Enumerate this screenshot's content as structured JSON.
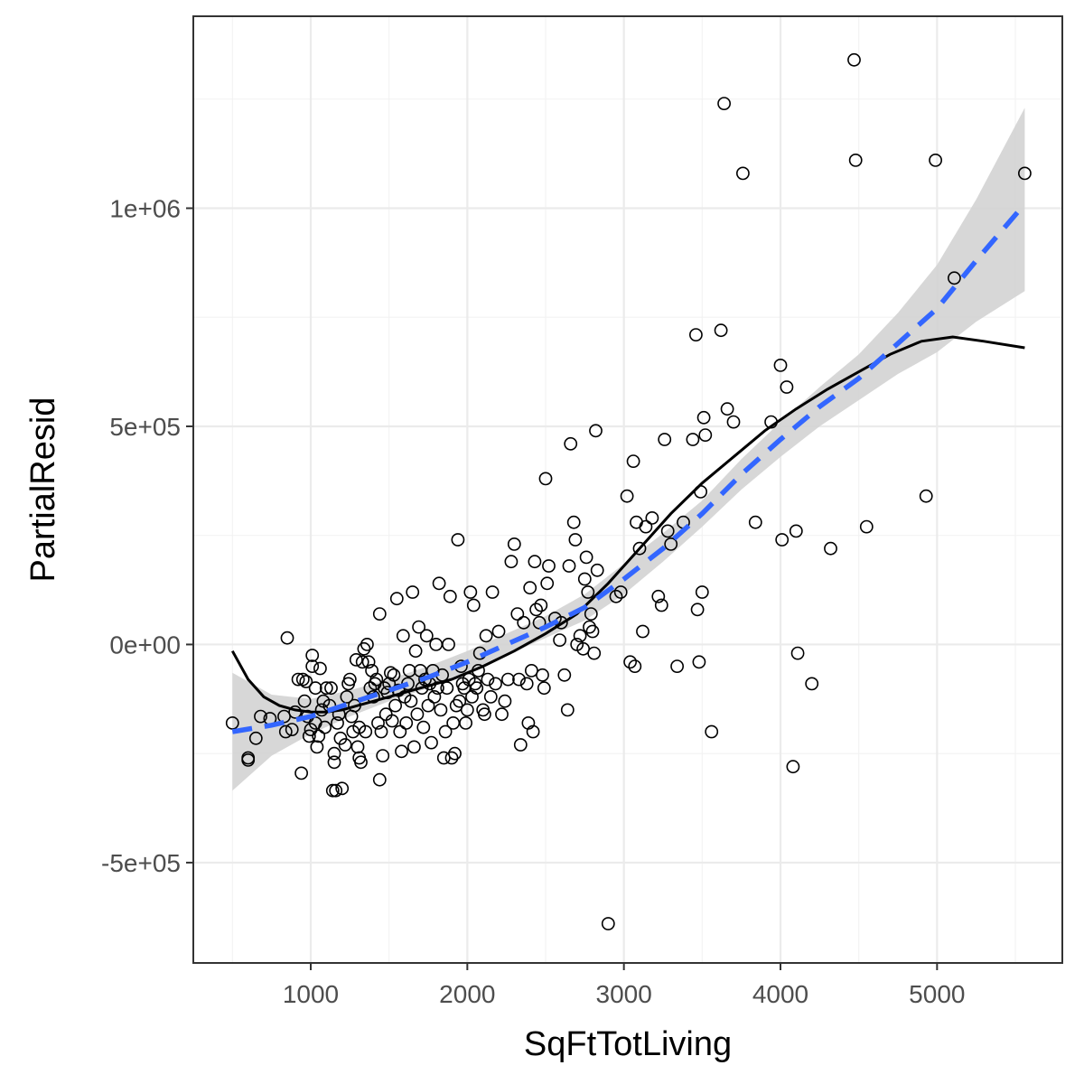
{
  "chart_data": {
    "type": "scatter",
    "xlabel": "SqFtTotLiving",
    "ylabel": "PartialResid",
    "xlim": [
      250,
      5800
    ],
    "ylim": [
      -730000,
      1440000
    ],
    "x_ticks": [
      1000,
      2000,
      3000,
      4000,
      5000
    ],
    "x_tick_labels": [
      "1000",
      "2000",
      "3000",
      "4000",
      "5000"
    ],
    "y_ticks": [
      -500000,
      0,
      500000,
      1000000
    ],
    "y_tick_labels": [
      "-5e+05",
      "0e+00",
      "5e+05",
      "1e+06"
    ],
    "x_minor_ticks": [
      500,
      1500,
      2500,
      3500,
      4500,
      5500
    ],
    "y_minor_ticks": [
      -250000,
      250000,
      750000,
      1250000
    ],
    "grid": true,
    "colors": {
      "smooth_line": "#3366ff",
      "ribbon": "#d3d3d3",
      "loess_line": "#000000",
      "points": "#000000"
    },
    "series": [
      {
        "kind": "points",
        "points": [
          [
            500,
            -180000
          ],
          [
            600,
            -260000
          ],
          [
            600,
            -265000
          ],
          [
            650,
            -215000
          ],
          [
            680,
            -165000
          ],
          [
            740,
            -170000
          ],
          [
            830,
            -165000
          ],
          [
            840,
            -200000
          ],
          [
            850,
            15000
          ],
          [
            880,
            -195000
          ],
          [
            900,
            -155000
          ],
          [
            920,
            -80000
          ],
          [
            940,
            -295000
          ],
          [
            950,
            -80000
          ],
          [
            960,
            -130000
          ],
          [
            970,
            -85000
          ],
          [
            980,
            -165000
          ],
          [
            990,
            -210000
          ],
          [
            1000,
            -195000
          ],
          [
            1010,
            -25000
          ],
          [
            1010,
            -50000
          ],
          [
            1030,
            -100000
          ],
          [
            1030,
            -180000
          ],
          [
            1040,
            -235000
          ],
          [
            1050,
            -210000
          ],
          [
            1060,
            -55000
          ],
          [
            1070,
            -150000
          ],
          [
            1080,
            -130000
          ],
          [
            1090,
            -190000
          ],
          [
            1100,
            -100000
          ],
          [
            1120,
            -140000
          ],
          [
            1130,
            -100000
          ],
          [
            1140,
            -335000
          ],
          [
            1150,
            -270000
          ],
          [
            1150,
            -250000
          ],
          [
            1160,
            -335000
          ],
          [
            1170,
            -180000
          ],
          [
            1180,
            -160000
          ],
          [
            1190,
            -215000
          ],
          [
            1200,
            -330000
          ],
          [
            1220,
            -230000
          ],
          [
            1230,
            -120000
          ],
          [
            1240,
            -90000
          ],
          [
            1250,
            -80000
          ],
          [
            1260,
            -165000
          ],
          [
            1270,
            -200000
          ],
          [
            1280,
            -140000
          ],
          [
            1290,
            -35000
          ],
          [
            1300,
            -235000
          ],
          [
            1310,
            -260000
          ],
          [
            1310,
            -190000
          ],
          [
            1320,
            -270000
          ],
          [
            1330,
            -40000
          ],
          [
            1340,
            -10000
          ],
          [
            1350,
            -200000
          ],
          [
            1360,
            0
          ],
          [
            1370,
            -40000
          ],
          [
            1380,
            -100000
          ],
          [
            1390,
            -60000
          ],
          [
            1400,
            -120000
          ],
          [
            1410,
            -90000
          ],
          [
            1420,
            -80000
          ],
          [
            1430,
            -180000
          ],
          [
            1440,
            -310000
          ],
          [
            1440,
            70000
          ],
          [
            1450,
            -200000
          ],
          [
            1460,
            -255000
          ],
          [
            1470,
            -100000
          ],
          [
            1480,
            -160000
          ],
          [
            1490,
            -110000
          ],
          [
            1500,
            -90000
          ],
          [
            1510,
            -65000
          ],
          [
            1520,
            -175000
          ],
          [
            1530,
            -70000
          ],
          [
            1540,
            -140000
          ],
          [
            1550,
            105000
          ],
          [
            1560,
            -105000
          ],
          [
            1570,
            -200000
          ],
          [
            1580,
            -245000
          ],
          [
            1590,
            20000
          ],
          [
            1600,
            -120000
          ],
          [
            1610,
            -180000
          ],
          [
            1620,
            -90000
          ],
          [
            1630,
            -60000
          ],
          [
            1640,
            -130000
          ],
          [
            1650,
            120000
          ],
          [
            1660,
            -235000
          ],
          [
            1670,
            -15000
          ],
          [
            1680,
            -160000
          ],
          [
            1690,
            40000
          ],
          [
            1700,
            -60000
          ],
          [
            1710,
            -100000
          ],
          [
            1720,
            -190000
          ],
          [
            1730,
            -80000
          ],
          [
            1740,
            20000
          ],
          [
            1750,
            -140000
          ],
          [
            1760,
            -90000
          ],
          [
            1770,
            -225000
          ],
          [
            1780,
            -60000
          ],
          [
            1790,
            -120000
          ],
          [
            1800,
            0
          ],
          [
            1810,
            -100000
          ],
          [
            1820,
            140000
          ],
          [
            1830,
            -150000
          ],
          [
            1840,
            -70000
          ],
          [
            1850,
            -260000
          ],
          [
            1860,
            -200000
          ],
          [
            1870,
            -100000
          ],
          [
            1880,
            0
          ],
          [
            1890,
            110000
          ],
          [
            1900,
            -260000
          ],
          [
            1910,
            -180000
          ],
          [
            1920,
            -250000
          ],
          [
            1930,
            -140000
          ],
          [
            1940,
            240000
          ],
          [
            1950,
            -130000
          ],
          [
            1960,
            -50000
          ],
          [
            1970,
            -90000
          ],
          [
            1980,
            -100000
          ],
          [
            1990,
            -180000
          ],
          [
            2000,
            -150000
          ],
          [
            2010,
            -80000
          ],
          [
            2020,
            120000
          ],
          [
            2030,
            -120000
          ],
          [
            2040,
            90000
          ],
          [
            2050,
            -90000
          ],
          [
            2060,
            -100000
          ],
          [
            2070,
            -60000
          ],
          [
            2080,
            -20000
          ],
          [
            2100,
            -150000
          ],
          [
            2110,
            -160000
          ],
          [
            2120,
            20000
          ],
          [
            2130,
            -80000
          ],
          [
            2150,
            -120000
          ],
          [
            2160,
            120000
          ],
          [
            2180,
            -90000
          ],
          [
            2200,
            30000
          ],
          [
            2220,
            -160000
          ],
          [
            2240,
            -130000
          ],
          [
            2260,
            -80000
          ],
          [
            2280,
            190000
          ],
          [
            2300,
            230000
          ],
          [
            2320,
            70000
          ],
          [
            2330,
            -80000
          ],
          [
            2340,
            -230000
          ],
          [
            2360,
            50000
          ],
          [
            2380,
            -90000
          ],
          [
            2390,
            -180000
          ],
          [
            2400,
            130000
          ],
          [
            2410,
            -60000
          ],
          [
            2420,
            -200000
          ],
          [
            2430,
            190000
          ],
          [
            2440,
            80000
          ],
          [
            2460,
            50000
          ],
          [
            2470,
            90000
          ],
          [
            2480,
            -70000
          ],
          [
            2490,
            -100000
          ],
          [
            2500,
            380000
          ],
          [
            2510,
            140000
          ],
          [
            2520,
            180000
          ],
          [
            2560,
            60000
          ],
          [
            2590,
            10000
          ],
          [
            2600,
            50000
          ],
          [
            2620,
            -70000
          ],
          [
            2640,
            -150000
          ],
          [
            2650,
            180000
          ],
          [
            2660,
            460000
          ],
          [
            2680,
            280000
          ],
          [
            2690,
            240000
          ],
          [
            2700,
            0
          ],
          [
            2720,
            20000
          ],
          [
            2740,
            -10000
          ],
          [
            2750,
            150000
          ],
          [
            2760,
            200000
          ],
          [
            2770,
            120000
          ],
          [
            2780,
            40000
          ],
          [
            2790,
            70000
          ],
          [
            2800,
            30000
          ],
          [
            2810,
            -20000
          ],
          [
            2820,
            490000
          ],
          [
            2830,
            170000
          ],
          [
            2900,
            -640000
          ],
          [
            2950,
            110000
          ],
          [
            2980,
            120000
          ],
          [
            3020,
            340000
          ],
          [
            3040,
            -40000
          ],
          [
            3060,
            420000
          ],
          [
            3070,
            -50000
          ],
          [
            3080,
            280000
          ],
          [
            3100,
            220000
          ],
          [
            3120,
            30000
          ],
          [
            3140,
            270000
          ],
          [
            3180,
            290000
          ],
          [
            3220,
            110000
          ],
          [
            3240,
            90000
          ],
          [
            3260,
            470000
          ],
          [
            3280,
            260000
          ],
          [
            3300,
            230000
          ],
          [
            3340,
            -50000
          ],
          [
            3380,
            280000
          ],
          [
            3440,
            470000
          ],
          [
            3460,
            710000
          ],
          [
            3470,
            80000
          ],
          [
            3480,
            -40000
          ],
          [
            3490,
            350000
          ],
          [
            3500,
            120000
          ],
          [
            3510,
            520000
          ],
          [
            3520,
            480000
          ],
          [
            3560,
            -200000
          ],
          [
            3620,
            720000
          ],
          [
            3640,
            1240000
          ],
          [
            3660,
            540000
          ],
          [
            3700,
            510000
          ],
          [
            3760,
            1080000
          ],
          [
            3840,
            280000
          ],
          [
            3940,
            510000
          ],
          [
            4000,
            640000
          ],
          [
            4010,
            240000
          ],
          [
            4040,
            590000
          ],
          [
            4080,
            -280000
          ],
          [
            4100,
            260000
          ],
          [
            4110,
            -20000
          ],
          [
            4200,
            -90000
          ],
          [
            4320,
            220000
          ],
          [
            4470,
            1340000
          ],
          [
            4480,
            1110000
          ],
          [
            4550,
            270000
          ],
          [
            4930,
            340000
          ],
          [
            4990,
            1110000
          ],
          [
            5110,
            840000
          ],
          [
            5560,
            1080000
          ]
        ]
      },
      {
        "kind": "smooth",
        "line_style": "dashed",
        "color": "#3366ff",
        "x": [
          500,
          750,
          1000,
          1250,
          1500,
          1750,
          2000,
          2250,
          2500,
          2750,
          3000,
          3250,
          3500,
          3750,
          4000,
          4250,
          4500,
          4750,
          5000,
          5250,
          5560
        ],
        "y": [
          -200000,
          -185000,
          -165000,
          -135000,
          -105000,
          -75000,
          -40000,
          0,
          40000,
          85000,
          150000,
          220000,
          300000,
          390000,
          470000,
          545000,
          610000,
          690000,
          770000,
          880000,
          1010000
        ],
        "ci_lower": [
          -335000,
          -255000,
          -205000,
          -165000,
          -130000,
          -100000,
          -65000,
          -25000,
          15000,
          55000,
          115000,
          190000,
          270000,
          355000,
          430000,
          500000,
          560000,
          620000,
          670000,
          740000,
          810000
        ],
        "ci_upper": [
          -65000,
          -115000,
          -125000,
          -105000,
          -80000,
          -50000,
          -15000,
          25000,
          65000,
          115000,
          185000,
          255000,
          330000,
          425000,
          510000,
          590000,
          665000,
          760000,
          870000,
          1020000,
          1230000
        ]
      },
      {
        "kind": "loess",
        "line_style": "solid",
        "color": "#000000",
        "x": [
          500,
          600,
          700,
          800,
          900,
          1000,
          1100,
          1200,
          1300,
          1500,
          1700,
          1900,
          2100,
          2300,
          2500,
          2700,
          2900,
          3100,
          3300,
          3500,
          3700,
          3900,
          4100,
          4300,
          4500,
          4700,
          4900,
          5100,
          5300,
          5560
        ],
        "y": [
          -15000,
          -80000,
          -120000,
          -140000,
          -150000,
          -155000,
          -155000,
          -150000,
          -140000,
          -120000,
          -100000,
          -80000,
          -50000,
          -15000,
          25000,
          70000,
          140000,
          220000,
          300000,
          370000,
          430000,
          490000,
          540000,
          585000,
          625000,
          665000,
          695000,
          705000,
          695000,
          680000
        ]
      }
    ]
  }
}
